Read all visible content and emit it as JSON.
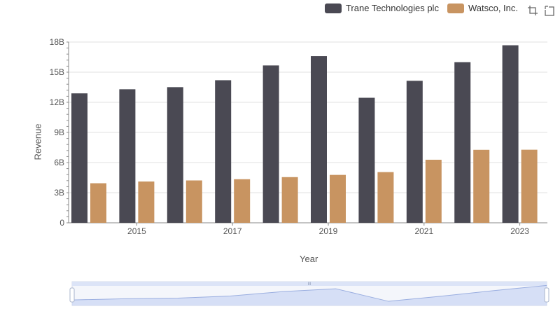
{
  "legend": {
    "series0": "Trane Technologies plc",
    "series1": "Watsco, Inc."
  },
  "toolbar": {
    "zoom_icon": "zoom-icon",
    "restore_icon": "restore-icon"
  },
  "chart_data": {
    "type": "bar",
    "title": "",
    "xlabel": "Year",
    "ylabel": "Revenue",
    "categories": [
      "2014",
      "2015",
      "2016",
      "2017",
      "2018",
      "2019",
      "2020",
      "2021",
      "2022",
      "2023"
    ],
    "x_tick_labels": [
      "2015",
      "2017",
      "2019",
      "2021",
      "2023"
    ],
    "y_tick_labels": [
      "0",
      "3B",
      "6B",
      "9B",
      "12B",
      "15B",
      "18B"
    ],
    "ylim": [
      0,
      18000000000
    ],
    "series": [
      {
        "name": "Trane Technologies plc",
        "color": "#4a4953",
        "values": [
          12890000000,
          13300000000,
          13510000000,
          14200000000,
          15670000000,
          16600000000,
          12450000000,
          14140000000,
          15990000000,
          17680000000
        ]
      },
      {
        "name": "Watsco, Inc.",
        "color": "#c89461",
        "values": [
          3940000000,
          4110000000,
          4220000000,
          4340000000,
          4550000000,
          4770000000,
          5050000000,
          6280000000,
          7270000000,
          7280000000
        ]
      }
    ],
    "legend_position": "top-right",
    "grid": true
  },
  "slider": {
    "handle_label": "III"
  }
}
